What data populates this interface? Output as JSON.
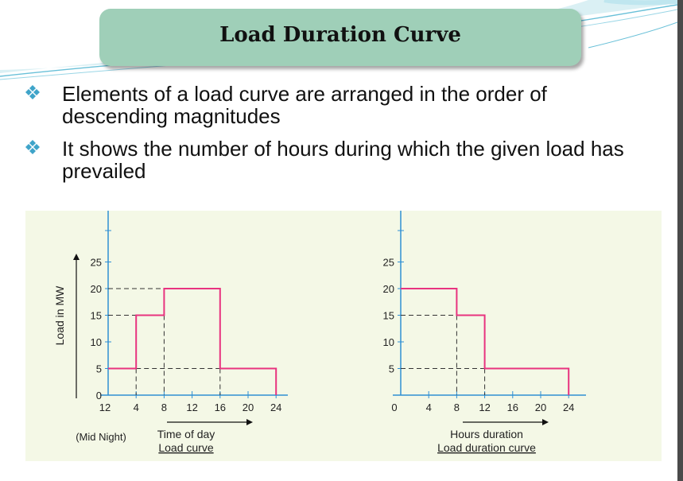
{
  "slide": {
    "title": "Load Duration Curve",
    "bullets": [
      "Elements of a load curve are arranged in the order of descending magnitudes",
      "It shows the number of hours during which the given load has prevailed"
    ]
  },
  "colors": {
    "title_box": "#9fcfb8",
    "bullet_icon": "#3fa4c9",
    "axis": "#2f8fd4",
    "curve": "#e8337f",
    "figure_bg": "#f4f8e6"
  },
  "chart_data": [
    {
      "type": "line",
      "step": true,
      "title": "",
      "caption": "Load curve",
      "xlabel": "Time of day",
      "x_note": "(Mid Night)",
      "ylabel": "Load in MW",
      "x_ticks": [
        "12",
        "4",
        "8",
        "12",
        "16",
        "20",
        "24"
      ],
      "y_ticks": [
        "0",
        "5",
        "10",
        "15",
        "20",
        "25"
      ],
      "xlim": [
        0,
        24
      ],
      "ylim": [
        0,
        25
      ],
      "series": [
        {
          "x": [
            0,
            4,
            4,
            8,
            8,
            16,
            16,
            24,
            24
          ],
          "y": [
            5,
            5,
            15,
            15,
            20,
            20,
            5,
            5,
            0
          ]
        }
      ]
    },
    {
      "type": "line",
      "step": true,
      "title": "",
      "caption": "Load duration curve",
      "xlabel": "Hours duration",
      "ylabel": "",
      "x_ticks": [
        "0",
        "4",
        "8",
        "12",
        "16",
        "20",
        "24"
      ],
      "y_ticks": [
        "5",
        "10",
        "15",
        "20",
        "25"
      ],
      "xlim": [
        0,
        24
      ],
      "ylim": [
        0,
        25
      ],
      "series": [
        {
          "x": [
            0,
            8,
            8,
            12,
            12,
            24,
            24
          ],
          "y": [
            20,
            20,
            15,
            15,
            5,
            5,
            0
          ]
        }
      ]
    }
  ]
}
